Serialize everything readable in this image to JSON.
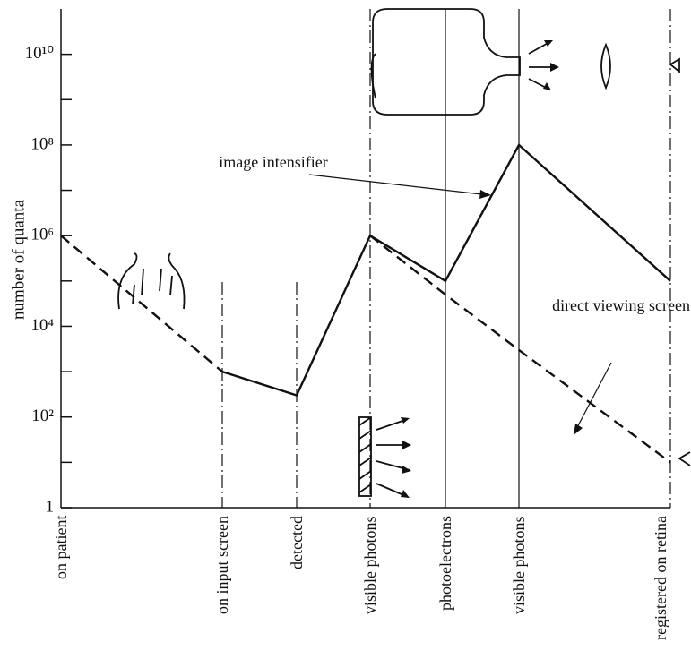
{
  "chart_data": {
    "type": "line",
    "y_label": "number of quanta",
    "categories": [
      "on patient",
      "on input screen",
      "detected",
      "visible photons",
      "photoelectrons",
      "visible photons",
      "registered on retina"
    ],
    "series": [
      {
        "name": "image intensifier",
        "color": "#111111",
        "dash": false,
        "values": [
          null,
          1000,
          300,
          1000000,
          100000,
          100000000,
          100000
        ]
      },
      {
        "name": "direct viewing screen",
        "color": "#111111",
        "dash": true,
        "values": [
          1000000,
          1000,
          null,
          1000000,
          50000,
          3000,
          10
        ]
      }
    ],
    "log_y": true,
    "ylim": [
      1,
      100000000000
    ],
    "yticks": [
      1,
      {
        "value": 100,
        "label": "10²"
      },
      {
        "value": 10000,
        "label": "10⁴"
      },
      {
        "value": 1000000,
        "label": "10⁶"
      },
      {
        "value": 100000000,
        "label": "10⁸"
      },
      {
        "value": 10000000000,
        "label": "10¹⁰"
      }
    ],
    "minor_yticks": [
      10,
      1000,
      100000,
      10000000,
      1000000000
    ]
  }
}
